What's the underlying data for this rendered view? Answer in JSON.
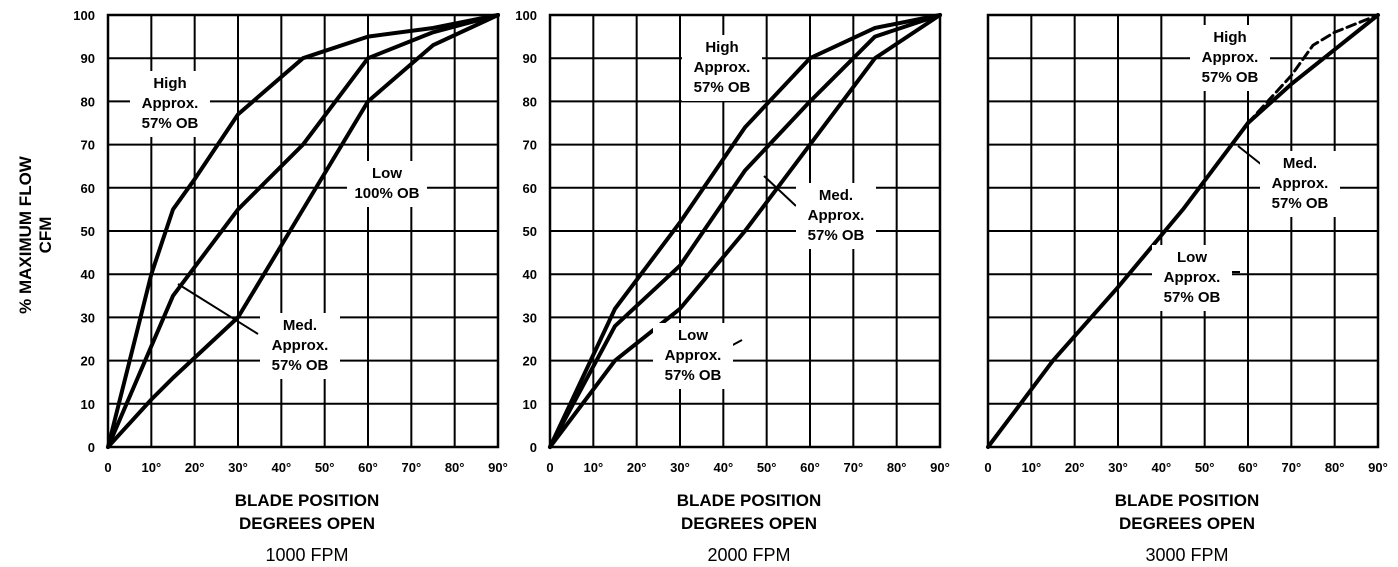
{
  "ylabel": [
    "% MAXIMUM FLOW",
    "CFM"
  ],
  "chart_data": [
    {
      "type": "line",
      "title": "1000 FPM",
      "xlabel": "BLADE POSITION DEGREES OPEN",
      "xlabel_lines": [
        "BLADE POSITION",
        "DEGREES OPEN"
      ],
      "xticks": [
        "0",
        "10°",
        "20°",
        "30°",
        "40°",
        "50°",
        "60°",
        "70°",
        "80°",
        "90°"
      ],
      "yticks": [
        "0",
        "10",
        "20",
        "30",
        "40",
        "50",
        "60",
        "70",
        "80",
        "90",
        "100"
      ],
      "xlim": [
        0,
        90
      ],
      "ylim": [
        0,
        100
      ],
      "grid": true,
      "series": [
        {
          "label_lines": [
            "High",
            "Approx.",
            "57% OB"
          ],
          "x": [
            0,
            5,
            10,
            15,
            20,
            30,
            45,
            60,
            75,
            90
          ],
          "y": [
            0,
            20,
            40,
            55,
            62,
            77,
            90,
            95,
            97,
            100
          ]
        },
        {
          "label_lines": [
            "Med.",
            "Approx.",
            "57% OB"
          ],
          "x": [
            0,
            15,
            30,
            45,
            60,
            75,
            90
          ],
          "y": [
            0,
            35,
            55,
            70,
            90,
            96,
            100
          ]
        },
        {
          "label_lines": [
            "Low",
            "100% OB"
          ],
          "x": [
            0,
            10,
            15,
            30,
            45,
            60,
            75,
            90
          ],
          "y": [
            0,
            11,
            16,
            30,
            55,
            80,
            93,
            100
          ]
        }
      ]
    },
    {
      "type": "line",
      "title": "2000 FPM",
      "xlabel": "BLADE POSITION DEGREES OPEN",
      "xlabel_lines": [
        "BLADE POSITION",
        "DEGREES OPEN"
      ],
      "xticks": [
        "0",
        "10°",
        "20°",
        "30°",
        "40°",
        "50°",
        "60°",
        "70°",
        "80°",
        "90°"
      ],
      "yticks": [
        "0",
        "10",
        "20",
        "30",
        "40",
        "50",
        "60",
        "70",
        "80",
        "90",
        "100"
      ],
      "xlim": [
        0,
        90
      ],
      "ylim": [
        0,
        100
      ],
      "grid": true,
      "series": [
        {
          "label_lines": [
            "High",
            "Approx.",
            "57% OB"
          ],
          "x": [
            0,
            15,
            30,
            45,
            60,
            75,
            90
          ],
          "y": [
            0,
            32,
            52,
            74,
            90,
            97,
            100
          ]
        },
        {
          "label_lines": [
            "Med.",
            "Approx.",
            "57% OB"
          ],
          "x": [
            0,
            15,
            30,
            45,
            60,
            75,
            90
          ],
          "y": [
            0,
            28,
            42,
            64,
            80,
            95,
            100
          ]
        },
        {
          "label_lines": [
            "Low",
            "Approx.",
            "57% OB"
          ],
          "x": [
            0,
            15,
            30,
            45,
            60,
            75,
            90
          ],
          "y": [
            0,
            20,
            32,
            50,
            70,
            90,
            100
          ]
        }
      ]
    },
    {
      "type": "line",
      "title": "3000 FPM",
      "xlabel": "BLADE POSITION DEGREES OPEN",
      "xlabel_lines": [
        "BLADE POSITION",
        "DEGREES OPEN"
      ],
      "xticks": [
        "0",
        "10°",
        "20°",
        "30°",
        "40°",
        "50°",
        "60°",
        "70°",
        "80°",
        "90°"
      ],
      "yticks": [],
      "xlim": [
        0,
        90
      ],
      "ylim": [
        0,
        100
      ],
      "grid": true,
      "series": [
        {
          "label_lines": [
            "High",
            "Approx.",
            "57% OB"
          ],
          "dashed": true,
          "x": [
            60,
            70,
            75,
            80,
            90
          ],
          "y": [
            75,
            86,
            93,
            96,
            100
          ]
        },
        {
          "label_lines": [
            "Med.",
            "Approx.",
            "57% OB"
          ],
          "x": [
            60,
            70,
            80,
            90
          ],
          "y": [
            75,
            84,
            92,
            100
          ]
        },
        {
          "label_lines": [
            "Low",
            "Approx.",
            "57% OB"
          ],
          "x": [
            0,
            15,
            30,
            45,
            60
          ],
          "y": [
            0,
            20,
            37,
            55,
            75
          ]
        }
      ]
    }
  ]
}
